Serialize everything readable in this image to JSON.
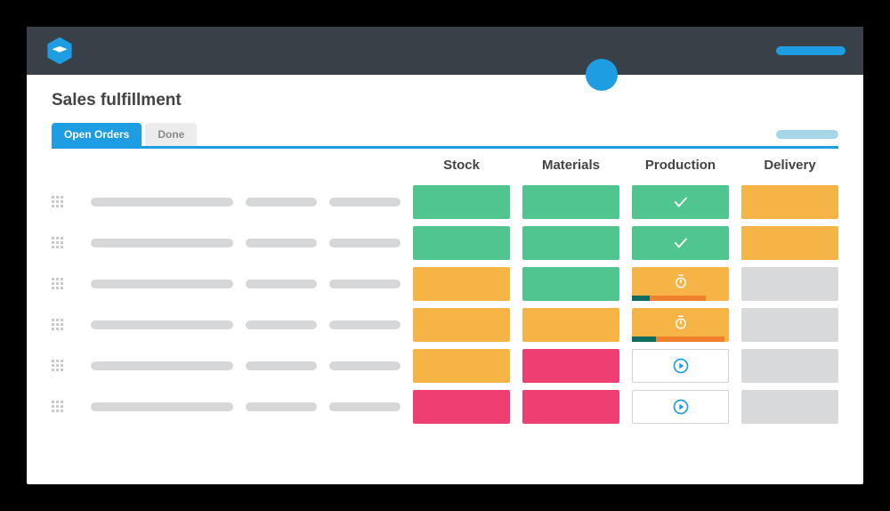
{
  "colors": {
    "topbar": "#3a4047",
    "accent": "#1e9de3",
    "accent_light": "#a6d7e8",
    "green": "#51c58f",
    "orange": "#f5b445",
    "pink": "#ef3e72",
    "gray_cell": "#d8d9da",
    "gray_skeleton": "#d6d7d8",
    "prod_dark": "#0e6d5f",
    "prod_orange": "#f07f2e"
  },
  "page_title": "Sales fulfillment",
  "tabs": [
    {
      "label": "Open Orders",
      "active": true
    },
    {
      "label": "Done",
      "active": false
    }
  ],
  "columns": [
    "Stock",
    "Materials",
    "Production",
    "Delivery"
  ],
  "rows": [
    {
      "stock": {
        "type": "solid",
        "color": "green"
      },
      "materials": {
        "type": "solid",
        "color": "green"
      },
      "production": {
        "type": "check",
        "color": "green"
      },
      "delivery": {
        "type": "solid",
        "color": "orange"
      }
    },
    {
      "stock": {
        "type": "solid",
        "color": "green"
      },
      "materials": {
        "type": "solid",
        "color": "green"
      },
      "production": {
        "type": "check",
        "color": "green"
      },
      "delivery": {
        "type": "solid",
        "color": "orange"
      }
    },
    {
      "stock": {
        "type": "solid",
        "color": "orange"
      },
      "materials": {
        "type": "solid",
        "color": "green"
      },
      "production": {
        "type": "timer",
        "color": "orange",
        "progress": {
          "dark": 0.18,
          "orange": 0.58
        }
      },
      "delivery": {
        "type": "solid",
        "color": "gray_cell"
      }
    },
    {
      "stock": {
        "type": "solid",
        "color": "orange"
      },
      "materials": {
        "type": "solid",
        "color": "orange"
      },
      "production": {
        "type": "timer",
        "color": "orange",
        "progress": {
          "dark": 0.25,
          "orange": 0.7
        }
      },
      "delivery": {
        "type": "solid",
        "color": "gray_cell"
      }
    },
    {
      "stock": {
        "type": "solid",
        "color": "orange"
      },
      "materials": {
        "type": "solid",
        "color": "pink"
      },
      "production": {
        "type": "play"
      },
      "delivery": {
        "type": "solid",
        "color": "gray_cell"
      }
    },
    {
      "stock": {
        "type": "solid",
        "color": "pink"
      },
      "materials": {
        "type": "solid",
        "color": "pink"
      },
      "production": {
        "type": "play"
      },
      "delivery": {
        "type": "solid",
        "color": "gray_cell"
      }
    }
  ]
}
